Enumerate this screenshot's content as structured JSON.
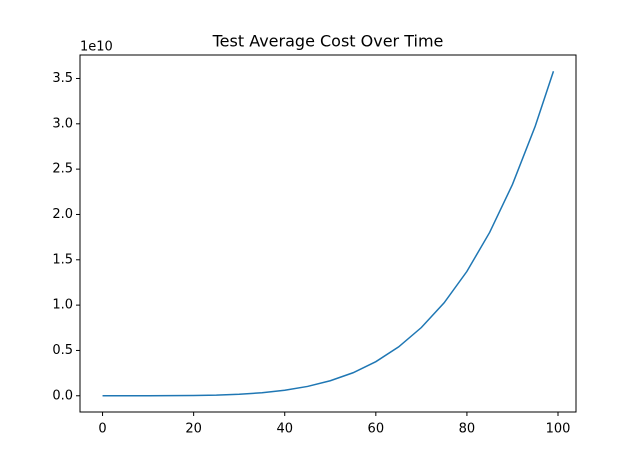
{
  "chart_data": {
    "type": "line",
    "title": "Test Average Cost Over Time",
    "y_offset_label": "1e10",
    "x": [
      0,
      5,
      10,
      15,
      20,
      25,
      30,
      35,
      40,
      45,
      50,
      55,
      60,
      65,
      70,
      75,
      80,
      85,
      90,
      95,
      99
    ],
    "series": [
      {
        "color": "#1f77b4",
        "values": [
          0,
          0,
          0,
          0.001,
          0.003,
          0.007,
          0.017,
          0.033,
          0.061,
          0.103,
          0.166,
          0.254,
          0.376,
          0.539,
          0.753,
          1.026,
          1.372,
          1.803,
          2.331,
          2.974,
          3.58
        ]
      }
    ],
    "xlim": [
      -4.95,
      103.95
    ],
    "xticks": [
      0,
      20,
      40,
      60,
      80,
      100
    ],
    "ylim": [
      -0.179,
      3.759
    ],
    "yticks": [
      {
        "value": 0,
        "label": "0.0"
      },
      0.5,
      {
        "value": 1,
        "label": "1.0"
      },
      1.5,
      {
        "value": 2,
        "label": "2.0"
      },
      2.5,
      {
        "value": 3,
        "label": "3.0"
      },
      3.5
    ]
  }
}
